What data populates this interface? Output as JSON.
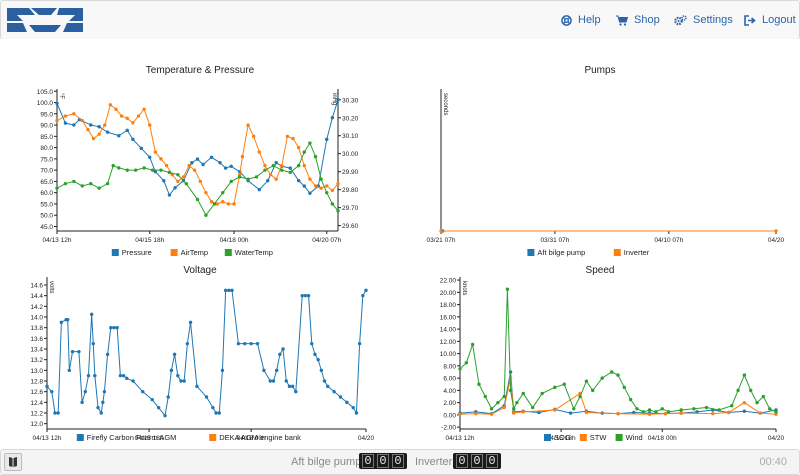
{
  "nav": {
    "help": "Help",
    "shop": "Shop",
    "settings": "Settings",
    "logout": "Logout"
  },
  "colors": {
    "blue": "#1f77b4",
    "orange": "#ff7f0e",
    "green": "#2ca02c",
    "link": "#2a64a8"
  },
  "footer": {
    "pump_label": "Aft bilge pump",
    "inverter_label": "Inverter:",
    "pump_digits": [
      "0",
      "0",
      "0"
    ],
    "inverter_digits": [
      "0",
      "0",
      "0"
    ],
    "time": "00:40"
  },
  "chart_data": [
    {
      "type": "line",
      "title": "Temperature & Pressure",
      "y_left": {
        "unit": "°F",
        "ticks": [
          45,
          50,
          55,
          60,
          65,
          70,
          75,
          80,
          85,
          90,
          95,
          100,
          105
        ],
        "ylim": [
          43,
          106
        ]
      },
      "y_right": {
        "unit": "inHg",
        "ticks": [
          29.6,
          29.7,
          29.8,
          29.9,
          30.0,
          30.1,
          30.2,
          30.3
        ],
        "tick_labels": [
          "29.60",
          "29.70",
          "29.80",
          "29.90",
          "30.00",
          "30.10",
          "30.20",
          "30.30"
        ],
        "ylim": [
          29.57,
          30.36
        ]
      },
      "x_ticks": [
        "04/13 12h",
        "04/15 18h",
        "04/18 00h",
        "04/20 07h"
      ],
      "x_range": [
        0,
        1
      ],
      "x_tick_positions": [
        0.0,
        0.33,
        0.63,
        0.96
      ],
      "series": [
        {
          "name": "Pressure",
          "axis": "right",
          "color": "#1f77b4",
          "x": [
            0,
            0.03,
            0.06,
            0.08,
            0.12,
            0.15,
            0.18,
            0.22,
            0.25,
            0.27,
            0.3,
            0.33,
            0.35,
            0.38,
            0.4,
            0.42,
            0.45,
            0.48,
            0.5,
            0.52,
            0.55,
            0.58,
            0.6,
            0.62,
            0.65,
            0.68,
            0.72,
            0.75,
            0.78,
            0.8,
            0.83,
            0.86,
            0.88,
            0.9,
            0.93,
            0.96,
            0.98,
            1.0
          ],
          "values": [
            30.28,
            30.17,
            30.16,
            30.19,
            30.16,
            30.15,
            30.12,
            30.1,
            30.13,
            30.08,
            30.03,
            29.98,
            29.9,
            29.85,
            29.77,
            29.81,
            29.85,
            29.95,
            29.97,
            29.94,
            29.98,
            29.95,
            29.92,
            29.93,
            29.9,
            29.85,
            29.8,
            29.85,
            29.95,
            29.93,
            29.92,
            29.85,
            29.82,
            29.78,
            29.82,
            30.08,
            30.2,
            30.3
          ]
        },
        {
          "name": "AirTemp",
          "axis": "left",
          "color": "#ff7f0e",
          "x": [
            0,
            0.03,
            0.06,
            0.09,
            0.11,
            0.13,
            0.15,
            0.17,
            0.19,
            0.21,
            0.23,
            0.25,
            0.27,
            0.29,
            0.31,
            0.33,
            0.35,
            0.37,
            0.39,
            0.41,
            0.43,
            0.45,
            0.47,
            0.49,
            0.51,
            0.53,
            0.55,
            0.57,
            0.59,
            0.61,
            0.63,
            0.65,
            0.66,
            0.68,
            0.7,
            0.72,
            0.74,
            0.76,
            0.78,
            0.8,
            0.82,
            0.84,
            0.86,
            0.88,
            0.9,
            0.92,
            0.94,
            0.96,
            0.98,
            1.0
          ],
          "values": [
            92,
            94,
            95,
            92,
            88,
            84,
            86,
            90,
            99,
            97,
            94,
            93,
            91,
            94,
            97,
            90,
            78,
            75,
            72,
            68,
            65,
            67,
            72,
            70,
            65,
            60,
            56,
            55,
            56,
            55,
            55,
            68,
            76,
            90,
            85,
            78,
            72,
            68,
            66,
            72,
            85,
            84,
            80,
            72,
            66,
            63,
            62,
            63,
            61,
            64
          ]
        },
        {
          "name": "WaterTemp",
          "axis": "left",
          "color": "#2ca02c",
          "x": [
            0,
            0.03,
            0.06,
            0.09,
            0.12,
            0.15,
            0.18,
            0.2,
            0.22,
            0.25,
            0.28,
            0.31,
            0.34,
            0.37,
            0.4,
            0.43,
            0.46,
            0.5,
            0.53,
            0.56,
            0.59,
            0.62,
            0.65,
            0.68,
            0.71,
            0.74,
            0.77,
            0.8,
            0.83,
            0.86,
            0.88,
            0.9,
            0.92,
            0.94,
            0.96,
            0.98,
            1.0
          ],
          "values": [
            62,
            64,
            65,
            63,
            64,
            62,
            64,
            72,
            71,
            70,
            70,
            71,
            70,
            70,
            69,
            68,
            64,
            57,
            50,
            55,
            60,
            65,
            67,
            66,
            67,
            70,
            72,
            70,
            69,
            72,
            78,
            82,
            76,
            66,
            60,
            55,
            52
          ]
        }
      ],
      "legend": "bottom"
    },
    {
      "type": "line",
      "title": "Pumps",
      "y_left": {
        "unit": "seconds"
      },
      "x_ticks": [
        "03/21 07h",
        "03/31 07h",
        "04/10 07h",
        "04/20"
      ],
      "x_tick_positions": [
        0.0,
        0.34,
        0.68,
        1.0
      ],
      "series": [
        {
          "name": "Aft bilge pump",
          "color": "#1f77b4",
          "x": [
            0.005
          ],
          "values": [
            0
          ]
        },
        {
          "name": "Inverter",
          "color": "#ff7f0e",
          "x": [
            0.0,
            1.0
          ],
          "values": [
            0,
            0
          ]
        }
      ],
      "legend": "bottom"
    },
    {
      "type": "line",
      "title": "Voltage",
      "y_left": {
        "unit": "volts",
        "ticks": [
          12.0,
          12.2,
          12.4,
          12.6,
          12.8,
          13.0,
          13.2,
          13.4,
          13.6,
          13.8,
          14.0,
          14.2,
          14.4,
          14.6
        ],
        "tick_labels": [
          "12.0",
          "12.2",
          "12.4",
          "12.6",
          "12.8",
          "13.0",
          "13.2",
          "13.4",
          "13.6",
          "13.8",
          "14.0",
          "14.2",
          "14.4",
          "14.6"
        ],
        "ylim": [
          11.9,
          14.75
        ]
      },
      "x_ticks": [
        "04/13 12h",
        "04/15 18h",
        "04/18 00h",
        "04/20"
      ],
      "x_tick_positions": [
        0.0,
        0.32,
        0.64,
        1.0
      ],
      "series": [
        {
          "name": "Firefly Carbon Foarm AGM",
          "color": "#1f77b4",
          "x": [
            0,
            0.015,
            0.025,
            0.035,
            0.045,
            0.06,
            0.065,
            0.07,
            0.08,
            0.1,
            0.11,
            0.12,
            0.13,
            0.14,
            0.145,
            0.15,
            0.16,
            0.17,
            0.175,
            0.18,
            0.19,
            0.2,
            0.21,
            0.22,
            0.23,
            0.24,
            0.25,
            0.27,
            0.3,
            0.33,
            0.35,
            0.37,
            0.38,
            0.39,
            0.4,
            0.41,
            0.42,
            0.43,
            0.44,
            0.45,
            0.47,
            0.5,
            0.52,
            0.53,
            0.54,
            0.55,
            0.56,
            0.57,
            0.58,
            0.6,
            0.62,
            0.64,
            0.66,
            0.68,
            0.7,
            0.71,
            0.72,
            0.73,
            0.74,
            0.75,
            0.76,
            0.77,
            0.78,
            0.8,
            0.81,
            0.82,
            0.83,
            0.84,
            0.85,
            0.86,
            0.87,
            0.88,
            0.9,
            0.92,
            0.94,
            0.96,
            0.97,
            0.98,
            0.99,
            1.0
          ],
          "values": [
            12.7,
            12.6,
            12.2,
            12.2,
            13.9,
            13.95,
            13.95,
            13.0,
            13.35,
            13.35,
            12.4,
            12.6,
            12.9,
            14.05,
            13.5,
            12.9,
            12.3,
            12.2,
            12.4,
            12.6,
            13.3,
            13.8,
            13.8,
            13.8,
            12.9,
            12.9,
            12.85,
            12.8,
            12.6,
            12.45,
            12.3,
            12.15,
            12.5,
            13.0,
            13.3,
            12.9,
            12.8,
            12.8,
            13.5,
            13.9,
            12.7,
            12.5,
            12.3,
            12.2,
            12.2,
            13.0,
            14.5,
            14.5,
            14.5,
            13.5,
            13.5,
            13.5,
            13.5,
            13.0,
            12.8,
            12.8,
            13.0,
            13.3,
            13.4,
            12.8,
            12.7,
            12.7,
            12.6,
            14.4,
            14.4,
            14.4,
            13.5,
            13.3,
            13.2,
            13.0,
            12.8,
            12.7,
            12.6,
            12.5,
            12.4,
            12.3,
            12.2,
            13.5,
            14.4,
            14.5
          ]
        },
        {
          "name": "DEKA AGM engine bank",
          "color": "#ff7f0e",
          "x": [],
          "values": []
        }
      ],
      "legend": "bottom"
    },
    {
      "type": "line",
      "title": "Speed",
      "y_left": {
        "unit": "knots",
        "ticks": [
          -2,
          0,
          2,
          4,
          6,
          8,
          10,
          12,
          14,
          16,
          18,
          20,
          22
        ],
        "tick_labels": [
          "-2.00",
          "0.00",
          "2.00",
          "4.00",
          "6.00",
          "8.00",
          "10.00",
          "12.00",
          "14.00",
          "16.00",
          "18.00",
          "20.00",
          "22.00"
        ],
        "ylim": [
          -2.3,
          22.5
        ]
      },
      "x_ticks": [
        "04/13 12h",
        "04/15 18h",
        "04/18 00h",
        "04/20"
      ],
      "x_tick_positions": [
        0.0,
        0.32,
        0.64,
        1.0
      ],
      "series": [
        {
          "name": "SOG",
          "color": "#1f77b4",
          "x": [
            0,
            0.05,
            0.1,
            0.14,
            0.16,
            0.17,
            0.2,
            0.25,
            0.3,
            0.35,
            0.4,
            0.45,
            0.5,
            0.55,
            0.6,
            0.65,
            0.7,
            0.75,
            0.8,
            0.85,
            0.9,
            0.95,
            1.0
          ],
          "values": [
            0.3,
            0.5,
            0.2,
            1.5,
            7.0,
            0.5,
            0.6,
            0.4,
            0.9,
            0.3,
            0.6,
            0.3,
            0.2,
            0.4,
            0.3,
            0.2,
            0.3,
            0.5,
            0.8,
            0.4,
            0.6,
            0.3,
            0.8
          ]
        },
        {
          "name": "STW",
          "color": "#ff7f0e",
          "x": [
            0,
            0.05,
            0.1,
            0.14,
            0.16,
            0.17,
            0.2,
            0.3,
            0.38,
            0.4,
            0.5,
            0.6,
            0.65,
            0.7,
            0.8,
            0.85,
            0.9,
            0.95,
            1.0
          ],
          "values": [
            0.1,
            0.2,
            0.1,
            1.2,
            6.0,
            0.3,
            0.5,
            0.8,
            3.5,
            0.4,
            0.2,
            0.1,
            0.2,
            0.3,
            0.2,
            0.4,
            2.0,
            0.3,
            0.1
          ]
        },
        {
          "name": "Wind",
          "color": "#2ca02c",
          "x": [
            0,
            0.02,
            0.04,
            0.06,
            0.08,
            0.1,
            0.12,
            0.14,
            0.15,
            0.16,
            0.17,
            0.18,
            0.2,
            0.23,
            0.26,
            0.3,
            0.33,
            0.36,
            0.38,
            0.4,
            0.42,
            0.45,
            0.48,
            0.5,
            0.52,
            0.54,
            0.56,
            0.58,
            0.6,
            0.62,
            0.64,
            0.66,
            0.7,
            0.74,
            0.78,
            0.82,
            0.86,
            0.88,
            0.9,
            0.92,
            0.94,
            0.96,
            0.98,
            1.0
          ],
          "values": [
            7.5,
            8.5,
            11.5,
            5.0,
            3.0,
            1.0,
            2.0,
            3.0,
            20.5,
            4.0,
            1.0,
            2.0,
            3.5,
            1.2,
            3.5,
            4.5,
            5.0,
            1.0,
            3.0,
            5.5,
            4.0,
            6.0,
            7.0,
            6.5,
            4.5,
            2.5,
            1.0,
            0.5,
            0.8,
            0.5,
            1.0,
            0.5,
            0.8,
            1.0,
            1.2,
            0.8,
            1.5,
            4.0,
            6.5,
            4.0,
            2.0,
            3.0,
            1.0,
            0.5
          ]
        }
      ],
      "legend": "bottom"
    }
  ]
}
